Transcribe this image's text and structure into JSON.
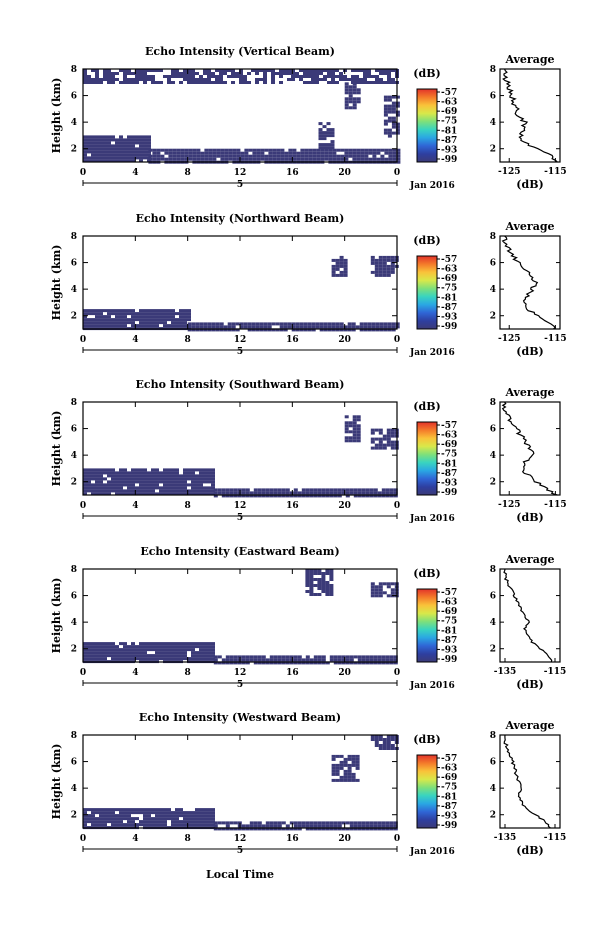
{
  "panel_titles": [
    "Echo Intensity (Vertical Beam)",
    "Echo Intensity (Northward Beam)",
    "Echo Intensity (Southward Beam)",
    "Echo Intensity (Eastward Beam)",
    "Echo Intensity (Westward Beam)"
  ],
  "labels": {
    "ylabel": "Height (km)",
    "date": "Jan 2016",
    "day": "5",
    "xlabel": "Local Time",
    "avg_title": "Average",
    "unit": "(dB)"
  },
  "chart_data": [
    {
      "type": "heatmap",
      "title": "Echo Intensity (Vertical Beam)",
      "xlabel": "",
      "ylabel": "Height (km)",
      "x_ticks": [
        "0",
        "4",
        "8",
        "12",
        "16",
        "20",
        "0"
      ],
      "y_ticks": [
        "2",
        "4",
        "6",
        "8"
      ],
      "xlim": [
        0,
        24
      ],
      "ylim": [
        1,
        8
      ],
      "colorbar": {
        "label": "(dB)",
        "ticks": [
          "-57",
          "-63",
          "-69",
          "-75",
          "-81",
          "-87",
          "-93",
          "-99"
        ]
      },
      "dominant_value_db": -99,
      "echo_regions": [
        {
          "x": [
            0,
            24
          ],
          "y": [
            7,
            8
          ]
        },
        {
          "x": [
            0,
            5
          ],
          "y": [
            1,
            3
          ]
        },
        {
          "x": [
            5,
            24
          ],
          "y": [
            1,
            2
          ]
        },
        {
          "x": [
            18,
            19
          ],
          "y": [
            2,
            4
          ]
        },
        {
          "x": [
            20,
            21
          ],
          "y": [
            5,
            7
          ]
        },
        {
          "x": [
            23,
            24
          ],
          "y": [
            3,
            6
          ]
        }
      ],
      "average": {
        "title": "Average",
        "xlabel": "(dB)",
        "x_ticks": [
          "-125",
          "-115"
        ],
        "xlim": [
          -127,
          -114
        ],
        "ylim": [
          1,
          8
        ],
        "y_ticks": [
          "2",
          "4",
          "6",
          "8"
        ],
        "height": [
          1.0,
          1.5,
          2.0,
          2.5,
          3.0,
          3.5,
          4.0,
          4.5,
          5.0,
          5.5,
          6.0,
          6.5,
          7.0,
          7.5,
          8.0
        ],
        "value": [
          -115,
          -116,
          -119,
          -122,
          -122.5,
          -122,
          -121.5,
          -123,
          -123.5,
          -124,
          -124.5,
          -125,
          -125.5,
          -126,
          -126
        ]
      }
    },
    {
      "type": "heatmap",
      "title": "Echo Intensity (Northward Beam)",
      "xlabel": "",
      "ylabel": "Height (km)",
      "x_ticks": [
        "0",
        "4",
        "8",
        "12",
        "16",
        "20",
        "0"
      ],
      "y_ticks": [
        "2",
        "4",
        "6",
        "8"
      ],
      "xlim": [
        0,
        24
      ],
      "ylim": [
        1,
        8
      ],
      "colorbar": {
        "label": "(dB)",
        "ticks": [
          "-57",
          "-63",
          "-69",
          "-75",
          "-81",
          "-87",
          "-93",
          "-99"
        ]
      },
      "dominant_value_db": -99,
      "echo_regions": [
        {
          "x": [
            0,
            8
          ],
          "y": [
            1,
            2.5
          ]
        },
        {
          "x": [
            8,
            24
          ],
          "y": [
            1,
            1.5
          ]
        },
        {
          "x": [
            19,
            20
          ],
          "y": [
            5,
            6.5
          ]
        },
        {
          "x": [
            22,
            24
          ],
          "y": [
            5,
            6.5
          ]
        }
      ],
      "average": {
        "title": "Average",
        "xlabel": "(dB)",
        "x_ticks": [
          "-125",
          "-115"
        ],
        "xlim": [
          -127,
          -114
        ],
        "ylim": [
          1,
          8
        ],
        "y_ticks": [
          "2",
          "4",
          "6",
          "8"
        ],
        "height": [
          1.0,
          1.5,
          2.0,
          2.5,
          3.0,
          3.5,
          4.0,
          4.5,
          5.0,
          5.5,
          6.0,
          6.5,
          7.0,
          7.5,
          8.0
        ],
        "value": [
          -115,
          -117,
          -119,
          -121,
          -121.5,
          -121,
          -120,
          -119.5,
          -120,
          -121.5,
          -123,
          -124,
          -125,
          -126,
          -126
        ]
      }
    },
    {
      "type": "heatmap",
      "title": "Echo Intensity (Southward Beam)",
      "xlabel": "",
      "ylabel": "Height (km)",
      "x_ticks": [
        "0",
        "4",
        "8",
        "12",
        "16",
        "20",
        "0"
      ],
      "y_ticks": [
        "2",
        "4",
        "6",
        "8"
      ],
      "xlim": [
        0,
        24
      ],
      "ylim": [
        1,
        8
      ],
      "colorbar": {
        "label": "(dB)",
        "ticks": [
          "-57",
          "-63",
          "-69",
          "-75",
          "-81",
          "-87",
          "-93",
          "-99"
        ]
      },
      "dominant_value_db": -99,
      "echo_regions": [
        {
          "x": [
            0,
            10
          ],
          "y": [
            1,
            3
          ]
        },
        {
          "x": [
            10,
            24
          ],
          "y": [
            1,
            1.5
          ]
        },
        {
          "x": [
            20,
            21
          ],
          "y": [
            5,
            7
          ]
        },
        {
          "x": [
            22,
            24
          ],
          "y": [
            4.5,
            6
          ]
        }
      ],
      "average": {
        "title": "Average",
        "xlabel": "(dB)",
        "x_ticks": [
          "-125",
          "-115"
        ],
        "xlim": [
          -127,
          -114
        ],
        "ylim": [
          1,
          8
        ],
        "y_ticks": [
          "2",
          "4",
          "6",
          "8"
        ],
        "height": [
          1.0,
          1.5,
          2.0,
          2.5,
          3.0,
          3.5,
          4.0,
          4.5,
          5.0,
          5.5,
          6.0,
          6.5,
          7.0,
          7.5,
          8.0
        ],
        "value": [
          -115,
          -117,
          -119,
          -121,
          -122,
          -121.5,
          -120,
          -120.5,
          -121.5,
          -122.5,
          -123.5,
          -124.5,
          -125.5,
          -126,
          -126
        ]
      }
    },
    {
      "type": "heatmap",
      "title": "Echo Intensity (Eastward Beam)",
      "xlabel": "",
      "ylabel": "Height (km)",
      "x_ticks": [
        "0",
        "4",
        "8",
        "12",
        "16",
        "20",
        "0"
      ],
      "y_ticks": [
        "2",
        "4",
        "6",
        "8"
      ],
      "xlim": [
        0,
        24
      ],
      "ylim": [
        1,
        8
      ],
      "colorbar": {
        "label": "(dB)",
        "ticks": [
          "-57",
          "-63",
          "-69",
          "-75",
          "-81",
          "-87",
          "-93",
          "-99"
        ]
      },
      "dominant_value_db": -99,
      "echo_regions": [
        {
          "x": [
            0,
            10
          ],
          "y": [
            1,
            2.5
          ]
        },
        {
          "x": [
            10,
            24
          ],
          "y": [
            1,
            1.5
          ]
        },
        {
          "x": [
            17,
            19
          ],
          "y": [
            6,
            8
          ]
        },
        {
          "x": [
            22,
            24
          ],
          "y": [
            6,
            7
          ]
        }
      ],
      "average": {
        "title": "Average",
        "xlabel": "(dB)",
        "x_ticks": [
          "-135",
          "-115"
        ],
        "xlim": [
          -137,
          -113
        ],
        "ylim": [
          1,
          8
        ],
        "y_ticks": [
          "2",
          "4",
          "6",
          "8"
        ],
        "height": [
          1.0,
          1.5,
          2.0,
          2.5,
          3.0,
          3.5,
          4.0,
          4.5,
          5.0,
          5.5,
          6.0,
          6.5,
          7.0,
          7.5,
          8.0
        ],
        "value": [
          -116,
          -118,
          -121,
          -124,
          -126,
          -127,
          -125.5,
          -127,
          -128.5,
          -130,
          -131.5,
          -132.5,
          -134,
          -135,
          -135
        ]
      }
    },
    {
      "type": "heatmap",
      "title": "Echo Intensity (Westward Beam)",
      "xlabel": "Local Time",
      "ylabel": "Height (km)",
      "x_ticks": [
        "0",
        "4",
        "8",
        "12",
        "16",
        "20",
        "0"
      ],
      "y_ticks": [
        "2",
        "4",
        "6",
        "8"
      ],
      "xlim": [
        0,
        24
      ],
      "ylim": [
        1,
        8
      ],
      "colorbar": {
        "label": "(dB)",
        "ticks": [
          "-57",
          "-63",
          "-69",
          "-75",
          "-81",
          "-87",
          "-93",
          "-99"
        ]
      },
      "dominant_value_db": -99,
      "echo_regions": [
        {
          "x": [
            0,
            10
          ],
          "y": [
            1,
            2.5
          ]
        },
        {
          "x": [
            10,
            24
          ],
          "y": [
            1,
            1.5
          ]
        },
        {
          "x": [
            19,
            21
          ],
          "y": [
            4.5,
            6.5
          ]
        },
        {
          "x": [
            22,
            24
          ],
          "y": [
            7,
            8
          ]
        }
      ],
      "average": {
        "title": "Average",
        "xlabel": "(dB)",
        "x_ticks": [
          "-135",
          "-115"
        ],
        "xlim": [
          -137,
          -113
        ],
        "ylim": [
          1,
          8
        ],
        "y_ticks": [
          "2",
          "4",
          "6",
          "8"
        ],
        "height": [
          1.0,
          1.5,
          2.0,
          2.5,
          3.0,
          3.5,
          4.0,
          4.5,
          5.0,
          5.5,
          6.0,
          6.5,
          7.0,
          7.5,
          8.0
        ],
        "value": [
          -117,
          -119,
          -123,
          -127,
          -128.5,
          -130,
          -128,
          -129.5,
          -130.5,
          -131,
          -132,
          -133,
          -134,
          -135,
          -135
        ]
      }
    }
  ],
  "colors": {
    "echo": "#3b3a78",
    "colorbar_stops": [
      "#3b3a78",
      "#2e3fa0",
      "#2f66d6",
      "#2aa7e3",
      "#39d4c0",
      "#7fe07a",
      "#d9e84a",
      "#f9c23a",
      "#f47a2a",
      "#e2332a"
    ]
  }
}
